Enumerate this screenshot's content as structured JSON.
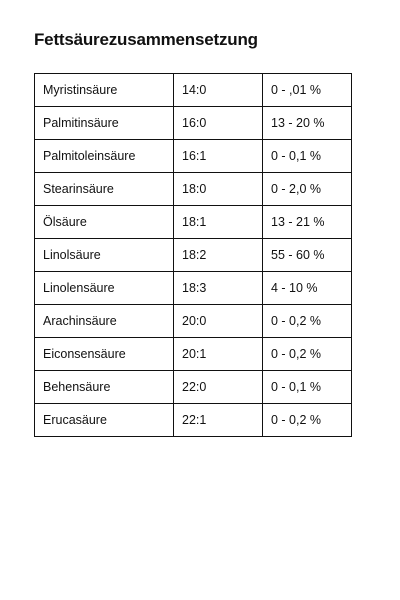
{
  "document": {
    "title": "Fettsäurezusammensetzung",
    "rows": [
      {
        "name": "Myristinsäure",
        "code": "14:0",
        "percent": "0 - ,01 %"
      },
      {
        "name": "Palmitinsäure",
        "code": "16:0",
        "percent": "13 - 20 %"
      },
      {
        "name": "Palmitoleinsäure",
        "code": "16:1",
        "percent": "0 - 0,1 %"
      },
      {
        "name": "Stearinsäure",
        "code": "18:0",
        "percent": "0 - 2,0 %"
      },
      {
        "name": "Ölsäure",
        "code": "18:1",
        "percent": "13 - 21 %"
      },
      {
        "name": "Linolsäure",
        "code": "18:2",
        "percent": "55 - 60 %"
      },
      {
        "name": "Linolensäure",
        "code": "18:3",
        "percent": "4 - 10 %"
      },
      {
        "name": "Arachinsäure",
        "code": "20:0",
        "percent": "0 - 0,2 %"
      },
      {
        "name": "Eiconsensäure",
        "code": "20:1",
        "percent": "0 - 0,2 %"
      },
      {
        "name": "Behensäure",
        "code": "22:0",
        "percent": "0 - 0,1 %"
      },
      {
        "name": "Erucasäure",
        "code": "22:1",
        "percent": "0 - 0,2 %"
      }
    ]
  }
}
